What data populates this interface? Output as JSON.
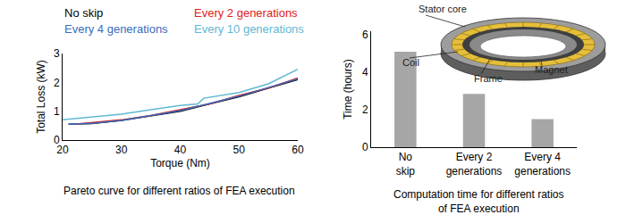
{
  "chart_data": [
    {
      "type": "line",
      "title": "Pareto curve for different ratios of FEA execution",
      "x_label": "Torque (Nm)",
      "y_label": "Total Loss (kW)",
      "xlim": [
        20,
        60
      ],
      "xticks": [
        20,
        30,
        40,
        50,
        60
      ],
      "ylim": [
        0,
        3
      ],
      "yticks": [
        0,
        1,
        2,
        3
      ],
      "grid": false,
      "legend": "top",
      "series": [
        {
          "name": "No skip",
          "color": "#000000",
          "x": [
            21,
            25,
            30,
            35,
            40,
            45,
            50,
            55,
            60
          ],
          "values": [
            0.55,
            0.57,
            0.68,
            0.85,
            1.0,
            1.25,
            1.5,
            1.8,
            2.1
          ]
        },
        {
          "name": "Every 2 generations",
          "color": "#e0201b",
          "x": [
            22,
            25,
            30,
            35,
            40,
            45,
            50,
            55,
            60
          ],
          "values": [
            0.55,
            0.6,
            0.7,
            0.85,
            1.05,
            1.25,
            1.55,
            1.8,
            2.15
          ]
        },
        {
          "name": "Every 4 generations",
          "color": "#3a6cc0",
          "x": [
            21,
            25,
            30,
            35,
            40,
            45,
            50,
            55,
            60
          ],
          "values": [
            0.55,
            0.58,
            0.68,
            0.86,
            1.02,
            1.27,
            1.52,
            1.82,
            2.12
          ]
        },
        {
          "name": "Every 10 generations",
          "color": "#5fb8d4",
          "x": [
            20,
            25,
            30,
            35,
            40,
            43,
            44,
            50,
            55,
            60
          ],
          "values": [
            0.7,
            0.8,
            0.9,
            1.05,
            1.2,
            1.25,
            1.45,
            1.65,
            1.95,
            2.45
          ]
        }
      ]
    },
    {
      "type": "bar",
      "title": "Computation time for different ratios of FEA execution",
      "y_label": "Time (hours)",
      "categories": [
        "No skip",
        "Every 2 generations",
        "Every 4 generations"
      ],
      "values": [
        5.1,
        2.85,
        1.5
      ],
      "color": "#a6a6a6",
      "ylim": [
        0,
        6.2
      ],
      "yticks": [
        0,
        2,
        4,
        6
      ],
      "grid": false,
      "annotations": [
        "Stator core",
        "Coil",
        "Frame",
        "Magnet"
      ]
    }
  ]
}
